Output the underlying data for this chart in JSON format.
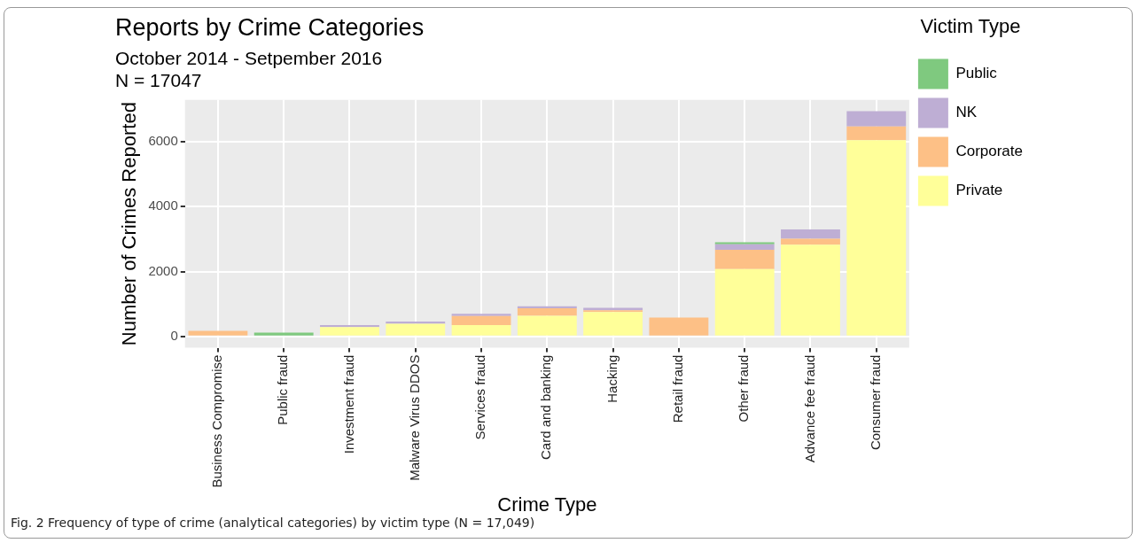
{
  "chart_data": {
    "type": "bar",
    "title": "Reports by Crime Categories",
    "subtitle": "October 2014 - Setpember 2016\nN = 17047",
    "xlabel": "Crime Type",
    "ylabel": "Number of Crimes Reported",
    "legend_title": "Victim Type",
    "categories": [
      "Business Compromise",
      "Public fraud",
      "Investment fraud",
      "Malware Virus DDOS",
      "Services fraud",
      "Card and banking",
      "Hacking",
      "Retail fraud",
      "Other fraud",
      "Advance fee fraud",
      "Consumer fraud"
    ],
    "stacked": true,
    "series": [
      {
        "name": "Private",
        "color": "#ffff99",
        "values": [
          0,
          0,
          290,
          390,
          350,
          640,
          750,
          0,
          2080,
          2830,
          6050
        ]
      },
      {
        "name": "Corporate",
        "color": "#fdc086",
        "values": [
          170,
          0,
          0,
          0,
          280,
          230,
          60,
          580,
          590,
          180,
          420
        ]
      },
      {
        "name": "NK",
        "color": "#beaed4",
        "values": [
          0,
          0,
          60,
          70,
          70,
          60,
          70,
          0,
          170,
          290,
          470
        ]
      },
      {
        "name": "Public",
        "color": "#7fc97f",
        "values": [
          0,
          120,
          0,
          0,
          0,
          0,
          0,
          0,
          60,
          0,
          0
        ]
      }
    ],
    "ylim": [
      -347,
      7290
    ],
    "yticks": [
      0,
      2000,
      4000,
      6000
    ],
    "grid": true,
    "legend": "right",
    "annotations": [
      "Fig. 2  Frequency of type of crime (analytical categories) by victim type (N = 17,049)"
    ]
  }
}
